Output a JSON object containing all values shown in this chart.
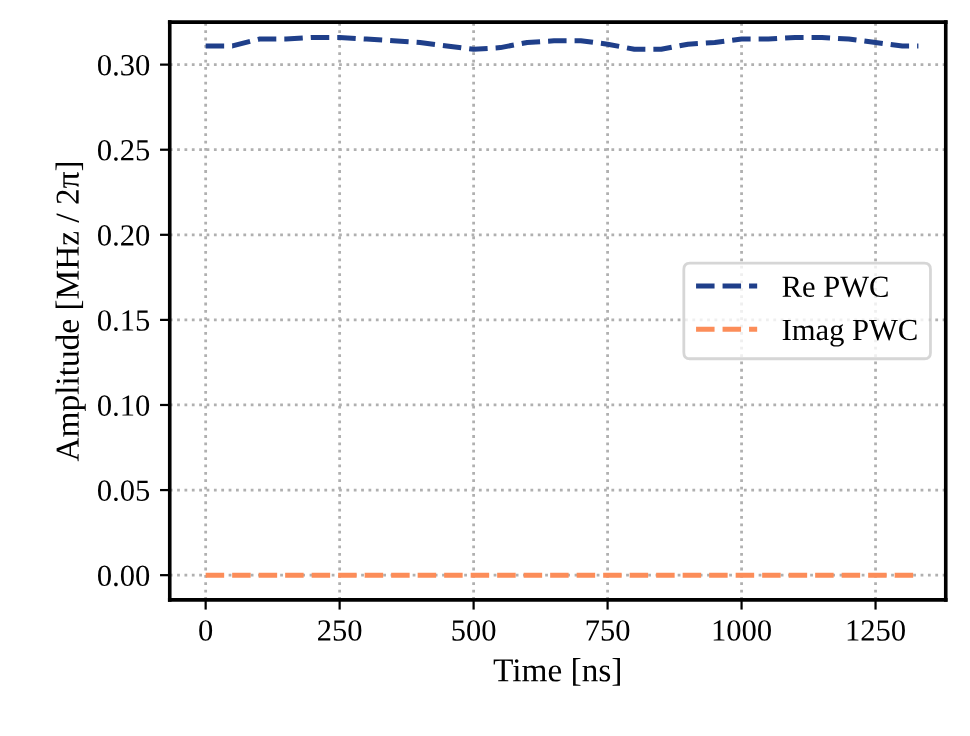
{
  "chart_data": {
    "type": "line",
    "xlabel": "Time [ns]",
    "ylabel": "Amplitude [MHz / 2π]",
    "xlim": [
      -67,
      1381
    ],
    "ylim": [
      -0.0145,
      0.325
    ],
    "xticks": [
      0,
      250,
      500,
      750,
      1000,
      1250
    ],
    "yticks": [
      {
        "value": 0,
        "label": "0.00"
      },
      {
        "value": 0.05,
        "label": "0.05"
      },
      {
        "value": 0.1,
        "label": "0.10"
      },
      {
        "value": 0.15,
        "label": "0.15"
      },
      {
        "value": 0.2,
        "label": "0.20"
      },
      {
        "value": 0.25,
        "label": "0.25"
      },
      {
        "value": 0.3,
        "label": "0.30"
      }
    ],
    "grid": true,
    "legend": "right",
    "line_style": "dashed",
    "marker": "none",
    "series": [
      {
        "name": "Re PWC",
        "color": "#1f3f8a",
        "x": [
          0,
          50,
          100,
          150,
          200,
          250,
          300,
          350,
          400,
          450,
          500,
          550,
          600,
          650,
          700,
          750,
          800,
          850,
          900,
          950,
          1000,
          1050,
          1100,
          1150,
          1200,
          1250,
          1300,
          1330
        ],
        "values": [
          0.311,
          0.311,
          0.315,
          0.315,
          0.316,
          0.316,
          0.315,
          0.314,
          0.313,
          0.311,
          0.309,
          0.31,
          0.313,
          0.314,
          0.314,
          0.312,
          0.309,
          0.309,
          0.312,
          0.313,
          0.315,
          0.315,
          0.316,
          0.316,
          0.315,
          0.313,
          0.311,
          0.311
        ]
      },
      {
        "name": "Imag PWC",
        "color": "#fc8d59",
        "x": [
          0,
          1330
        ],
        "values": [
          0,
          0
        ]
      }
    ]
  }
}
